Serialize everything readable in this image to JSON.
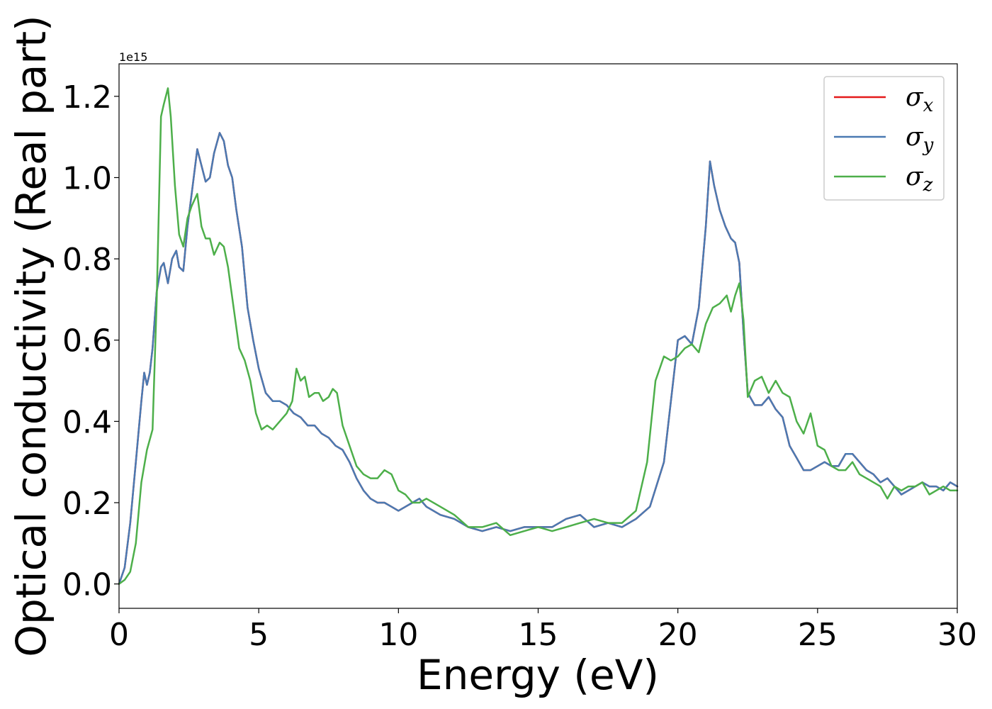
{
  "chart_data": {
    "type": "line",
    "xlabel": "Energy (eV)",
    "ylabel": "Optical conductivity (Real part)",
    "scale_label": "1e15",
    "xlim": [
      0,
      30
    ],
    "ylim": [
      -0.06,
      1.28
    ],
    "xticks": [
      0,
      5,
      10,
      15,
      20,
      25,
      30
    ],
    "xtick_labels": [
      "0",
      "5",
      "10",
      "15",
      "20",
      "25",
      "30"
    ],
    "yticks": [
      0.0,
      0.2,
      0.4,
      0.6,
      0.8,
      1.0,
      1.2
    ],
    "ytick_labels": [
      "0.0",
      "0.2",
      "0.4",
      "0.6",
      "0.8",
      "1.0",
      "1.2"
    ],
    "grid": false,
    "legend_position": "top-right",
    "series": [
      {
        "name": "σx",
        "name_base": "σ",
        "name_sub": "x",
        "color": "#e41a1c",
        "x": [
          0,
          0.2,
          0.4,
          0.6,
          0.8,
          0.9,
          1.0,
          1.1,
          1.2,
          1.35,
          1.5,
          1.6,
          1.75,
          1.9,
          2.05,
          2.15,
          2.3,
          2.45,
          2.6,
          2.8,
          2.95,
          3.1,
          3.25,
          3.4,
          3.6,
          3.75,
          3.9,
          4.05,
          4.2,
          4.4,
          4.6,
          4.8,
          5.0,
          5.25,
          5.5,
          5.75,
          6.0,
          6.25,
          6.5,
          6.75,
          7.0,
          7.25,
          7.5,
          7.75,
          8.0,
          8.25,
          8.5,
          8.75,
          9.0,
          9.25,
          9.5,
          9.75,
          10.0,
          10.25,
          10.5,
          10.75,
          11.0,
          11.5,
          12.0,
          12.5,
          13.0,
          13.5,
          14.0,
          14.5,
          15.0,
          15.5,
          16.0,
          16.5,
          17.0,
          17.5,
          18.0,
          18.5,
          19.0,
          19.5,
          20.0,
          20.25,
          20.5,
          20.75,
          21.0,
          21.15,
          21.3,
          21.5,
          21.7,
          21.9,
          22.05,
          22.2,
          22.35,
          22.5,
          22.75,
          23.0,
          23.25,
          23.5,
          23.75,
          24.0,
          24.25,
          24.5,
          24.75,
          25.0,
          25.25,
          25.5,
          25.75,
          26.0,
          26.25,
          26.5,
          26.75,
          27.0,
          27.25,
          27.5,
          27.75,
          28.0,
          28.25,
          28.5,
          28.75,
          29.0,
          29.25,
          29.5,
          29.75,
          30.0
        ],
        "y": [
          0.0,
          0.04,
          0.15,
          0.3,
          0.45,
          0.52,
          0.49,
          0.52,
          0.58,
          0.72,
          0.78,
          0.79,
          0.74,
          0.8,
          0.82,
          0.78,
          0.77,
          0.88,
          0.96,
          1.07,
          1.03,
          0.99,
          1.0,
          1.06,
          1.11,
          1.09,
          1.03,
          1.0,
          0.92,
          0.83,
          0.68,
          0.6,
          0.53,
          0.47,
          0.45,
          0.45,
          0.44,
          0.42,
          0.41,
          0.39,
          0.39,
          0.37,
          0.36,
          0.34,
          0.33,
          0.3,
          0.26,
          0.23,
          0.21,
          0.2,
          0.2,
          0.19,
          0.18,
          0.19,
          0.2,
          0.21,
          0.19,
          0.17,
          0.16,
          0.14,
          0.13,
          0.14,
          0.13,
          0.14,
          0.14,
          0.14,
          0.16,
          0.17,
          0.14,
          0.15,
          0.14,
          0.16,
          0.19,
          0.3,
          0.6,
          0.61,
          0.59,
          0.68,
          0.88,
          1.04,
          0.98,
          0.92,
          0.88,
          0.85,
          0.84,
          0.79,
          0.62,
          0.47,
          0.44,
          0.44,
          0.46,
          0.43,
          0.41,
          0.34,
          0.31,
          0.28,
          0.28,
          0.29,
          0.3,
          0.29,
          0.29,
          0.32,
          0.32,
          0.3,
          0.28,
          0.27,
          0.25,
          0.26,
          0.24,
          0.22,
          0.23,
          0.24,
          0.25,
          0.24,
          0.24,
          0.23,
          0.25,
          0.24
        ]
      },
      {
        "name": "σy",
        "name_base": "σ",
        "name_sub": "y",
        "color": "#4a7ab2",
        "x": [
          0,
          0.2,
          0.4,
          0.6,
          0.8,
          0.9,
          1.0,
          1.1,
          1.2,
          1.35,
          1.5,
          1.6,
          1.75,
          1.9,
          2.05,
          2.15,
          2.3,
          2.45,
          2.6,
          2.8,
          2.95,
          3.1,
          3.25,
          3.4,
          3.6,
          3.75,
          3.9,
          4.05,
          4.2,
          4.4,
          4.6,
          4.8,
          5.0,
          5.25,
          5.5,
          5.75,
          6.0,
          6.25,
          6.5,
          6.75,
          7.0,
          7.25,
          7.5,
          7.75,
          8.0,
          8.25,
          8.5,
          8.75,
          9.0,
          9.25,
          9.5,
          9.75,
          10.0,
          10.25,
          10.5,
          10.75,
          11.0,
          11.5,
          12.0,
          12.5,
          13.0,
          13.5,
          14.0,
          14.5,
          15.0,
          15.5,
          16.0,
          16.5,
          17.0,
          17.5,
          18.0,
          18.5,
          19.0,
          19.5,
          20.0,
          20.25,
          20.5,
          20.75,
          21.0,
          21.15,
          21.3,
          21.5,
          21.7,
          21.9,
          22.05,
          22.2,
          22.35,
          22.5,
          22.75,
          23.0,
          23.25,
          23.5,
          23.75,
          24.0,
          24.25,
          24.5,
          24.75,
          25.0,
          25.25,
          25.5,
          25.75,
          26.0,
          26.25,
          26.5,
          26.75,
          27.0,
          27.25,
          27.5,
          27.75,
          28.0,
          28.25,
          28.5,
          28.75,
          29.0,
          29.25,
          29.5,
          29.75,
          30.0
        ],
        "y": [
          0.0,
          0.04,
          0.15,
          0.3,
          0.45,
          0.52,
          0.49,
          0.52,
          0.58,
          0.72,
          0.78,
          0.79,
          0.74,
          0.8,
          0.82,
          0.78,
          0.77,
          0.88,
          0.96,
          1.07,
          1.03,
          0.99,
          1.0,
          1.06,
          1.11,
          1.09,
          1.03,
          1.0,
          0.92,
          0.83,
          0.68,
          0.6,
          0.53,
          0.47,
          0.45,
          0.45,
          0.44,
          0.42,
          0.41,
          0.39,
          0.39,
          0.37,
          0.36,
          0.34,
          0.33,
          0.3,
          0.26,
          0.23,
          0.21,
          0.2,
          0.2,
          0.19,
          0.18,
          0.19,
          0.2,
          0.21,
          0.19,
          0.17,
          0.16,
          0.14,
          0.13,
          0.14,
          0.13,
          0.14,
          0.14,
          0.14,
          0.16,
          0.17,
          0.14,
          0.15,
          0.14,
          0.16,
          0.19,
          0.3,
          0.6,
          0.61,
          0.59,
          0.68,
          0.88,
          1.04,
          0.98,
          0.92,
          0.88,
          0.85,
          0.84,
          0.79,
          0.62,
          0.47,
          0.44,
          0.44,
          0.46,
          0.43,
          0.41,
          0.34,
          0.31,
          0.28,
          0.28,
          0.29,
          0.3,
          0.29,
          0.29,
          0.32,
          0.32,
          0.3,
          0.28,
          0.27,
          0.25,
          0.26,
          0.24,
          0.22,
          0.23,
          0.24,
          0.25,
          0.24,
          0.24,
          0.23,
          0.25,
          0.24
        ]
      },
      {
        "name": "σz",
        "name_base": "σ",
        "name_sub": "z",
        "color": "#4daf4a",
        "x": [
          0,
          0.2,
          0.4,
          0.6,
          0.8,
          1.0,
          1.2,
          1.35,
          1.5,
          1.6,
          1.75,
          1.85,
          2.0,
          2.15,
          2.3,
          2.45,
          2.6,
          2.8,
          2.95,
          3.1,
          3.25,
          3.4,
          3.6,
          3.75,
          3.9,
          4.1,
          4.3,
          4.5,
          4.7,
          4.9,
          5.1,
          5.3,
          5.5,
          5.75,
          6.0,
          6.2,
          6.35,
          6.5,
          6.65,
          6.8,
          7.0,
          7.15,
          7.3,
          7.5,
          7.65,
          7.8,
          8.0,
          8.25,
          8.5,
          8.75,
          9.0,
          9.25,
          9.5,
          9.75,
          10.0,
          10.25,
          10.5,
          10.75,
          11.0,
          11.5,
          12.0,
          12.5,
          13.0,
          13.5,
          14.0,
          14.5,
          15.0,
          15.5,
          16.0,
          16.5,
          17.0,
          17.5,
          18.0,
          18.5,
          18.9,
          19.2,
          19.5,
          19.75,
          20.0,
          20.25,
          20.5,
          20.75,
          21.0,
          21.25,
          21.5,
          21.75,
          21.9,
          22.05,
          22.2,
          22.35,
          22.5,
          22.75,
          23.0,
          23.25,
          23.5,
          23.75,
          24.0,
          24.25,
          24.5,
          24.75,
          25.0,
          25.25,
          25.5,
          25.75,
          26.0,
          26.25,
          26.5,
          26.75,
          27.0,
          27.25,
          27.5,
          27.75,
          28.0,
          28.25,
          28.5,
          28.75,
          29.0,
          29.25,
          29.5,
          29.75,
          30.0
        ],
        "y": [
          0.0,
          0.01,
          0.03,
          0.1,
          0.25,
          0.33,
          0.38,
          0.7,
          1.15,
          1.18,
          1.22,
          1.15,
          0.98,
          0.86,
          0.83,
          0.9,
          0.93,
          0.96,
          0.88,
          0.85,
          0.85,
          0.81,
          0.84,
          0.83,
          0.78,
          0.68,
          0.58,
          0.55,
          0.5,
          0.42,
          0.38,
          0.39,
          0.38,
          0.4,
          0.42,
          0.45,
          0.53,
          0.5,
          0.51,
          0.46,
          0.47,
          0.47,
          0.45,
          0.46,
          0.48,
          0.47,
          0.39,
          0.34,
          0.29,
          0.27,
          0.26,
          0.26,
          0.28,
          0.27,
          0.23,
          0.22,
          0.2,
          0.2,
          0.21,
          0.19,
          0.17,
          0.14,
          0.14,
          0.15,
          0.12,
          0.13,
          0.14,
          0.13,
          0.14,
          0.15,
          0.16,
          0.15,
          0.15,
          0.18,
          0.3,
          0.5,
          0.56,
          0.55,
          0.56,
          0.58,
          0.59,
          0.57,
          0.64,
          0.68,
          0.69,
          0.71,
          0.67,
          0.71,
          0.74,
          0.65,
          0.46,
          0.5,
          0.51,
          0.47,
          0.5,
          0.47,
          0.46,
          0.4,
          0.37,
          0.42,
          0.34,
          0.33,
          0.29,
          0.28,
          0.28,
          0.3,
          0.27,
          0.26,
          0.25,
          0.24,
          0.21,
          0.24,
          0.23,
          0.24,
          0.24,
          0.25,
          0.22,
          0.23,
          0.24,
          0.23,
          0.23
        ]
      }
    ]
  }
}
